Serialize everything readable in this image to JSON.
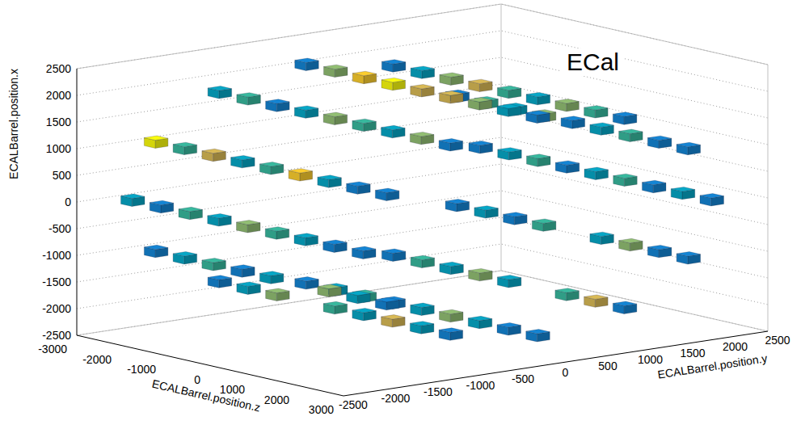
{
  "chart_data": {
    "type": "lego",
    "title": "ECal",
    "x_label": "ECALBarrel.position.x",
    "y_label": "ECALBarrel.position.y",
    "z_label": "ECALBarrel.position.z",
    "xlim": [
      -2500,
      2500
    ],
    "xticks": [
      -2500,
      -2000,
      -1500,
      -1000,
      -500,
      0,
      500,
      1000,
      1500,
      2000,
      2500
    ],
    "ylim": [
      -2500,
      2500
    ],
    "yticks": [
      -2500,
      -2000,
      -1500,
      -1000,
      -500,
      0,
      500,
      1000,
      1500,
      2000,
      2500
    ],
    "zlim": [
      -3000,
      3000
    ],
    "zticks": [
      -3000,
      -2000,
      -1000,
      0,
      1000,
      2000,
      3000
    ],
    "color_range": [
      0,
      10
    ],
    "grid": true,
    "points": [
      {
        "x": 0,
        "y": 2050,
        "z": -2600,
        "value": 3
      },
      {
        "x": 0,
        "y": 2050,
        "z": -1950,
        "value": 4
      },
      {
        "x": 0,
        "y": 2050,
        "z": -1300,
        "value": 5
      },
      {
        "x": 0,
        "y": 2050,
        "z": -650,
        "value": 2
      },
      {
        "x": 0,
        "y": 2050,
        "z": 0,
        "value": 4
      },
      {
        "x": 0,
        "y": 2050,
        "z": 650,
        "value": 5
      },
      {
        "x": 0,
        "y": 2050,
        "z": 1300,
        "value": 3
      },
      {
        "x": 0,
        "y": 2050,
        "z": 1950,
        "value": 4
      },
      {
        "x": 0,
        "y": 2050,
        "z": 2600,
        "value": 2
      },
      {
        "x": 1025,
        "y": 1775,
        "z": -2600,
        "value": 3
      },
      {
        "x": 1025,
        "y": 1775,
        "z": -1950,
        "value": 5
      },
      {
        "x": 1025,
        "y": 1775,
        "z": -1300,
        "value": 4
      },
      {
        "x": 1025,
        "y": 1775,
        "z": -650,
        "value": 6
      },
      {
        "x": 1025,
        "y": 1775,
        "z": 0,
        "value": 3
      },
      {
        "x": 1025,
        "y": 1775,
        "z": 650,
        "value": 4
      },
      {
        "x": 1025,
        "y": 1775,
        "z": 1300,
        "value": 5
      },
      {
        "x": 1025,
        "y": 1775,
        "z": 1950,
        "value": 3
      },
      {
        "x": 1025,
        "y": 1775,
        "z": 2600,
        "value": 2
      },
      {
        "x": -1025,
        "y": 1775,
        "z": -2600,
        "value": 2
      },
      {
        "x": -1025,
        "y": 1775,
        "z": -1950,
        "value": 4
      },
      {
        "x": -1025,
        "y": 1775,
        "z": -1300,
        "value": 3
      },
      {
        "x": -1025,
        "y": 1775,
        "z": -650,
        "value": 5
      },
      {
        "x": -1025,
        "y": 1775,
        "z": 650,
        "value": 4
      },
      {
        "x": -1025,
        "y": 1775,
        "z": 1300,
        "value": 6
      },
      {
        "x": -1025,
        "y": 1775,
        "z": 1950,
        "value": 3
      },
      {
        "x": -1025,
        "y": 1775,
        "z": 2600,
        "value": 2
      },
      {
        "x": 1775,
        "y": 1025,
        "z": -2600,
        "value": 2
      },
      {
        "x": 1775,
        "y": 1025,
        "z": -1950,
        "value": 4
      },
      {
        "x": 1775,
        "y": 1025,
        "z": -1300,
        "value": 6
      },
      {
        "x": 1775,
        "y": 1025,
        "z": -650,
        "value": 7
      },
      {
        "x": 1775,
        "y": 1025,
        "z": 0,
        "value": 5
      },
      {
        "x": 1775,
        "y": 1025,
        "z": 650,
        "value": 4
      },
      {
        "x": 1775,
        "y": 1025,
        "z": 1300,
        "value": 6
      },
      {
        "x": 1775,
        "y": 1025,
        "z": 1950,
        "value": 5
      },
      {
        "x": 1775,
        "y": 1025,
        "z": 2600,
        "value": 3
      },
      {
        "x": -1775,
        "y": 1025,
        "z": -2600,
        "value": 3
      },
      {
        "x": -1775,
        "y": 1025,
        "z": -1950,
        "value": 5
      },
      {
        "x": -1775,
        "y": 1025,
        "z": -1300,
        "value": 4
      },
      {
        "x": -1775,
        "y": 1025,
        "z": -650,
        "value": 6
      },
      {
        "x": -1775,
        "y": 1025,
        "z": 0,
        "value": 4
      },
      {
        "x": -1775,
        "y": 1025,
        "z": 1300,
        "value": 5
      },
      {
        "x": -1775,
        "y": 1025,
        "z": 1950,
        "value": 7
      },
      {
        "x": -1775,
        "y": 1025,
        "z": 2600,
        "value": 2
      },
      {
        "x": 2050,
        "y": 0,
        "z": -2600,
        "value": 3
      },
      {
        "x": 2050,
        "y": 0,
        "z": -1950,
        "value": 6
      },
      {
        "x": 2050,
        "y": 0,
        "z": -1300,
        "value": 9
      },
      {
        "x": 2050,
        "y": 0,
        "z": -650,
        "value": 10
      },
      {
        "x": 2050,
        "y": 0,
        "z": 0,
        "value": 8
      },
      {
        "x": 2050,
        "y": 0,
        "z": 650,
        "value": 7
      },
      {
        "x": 2050,
        "y": 0,
        "z": 1300,
        "value": 6
      },
      {
        "x": 2050,
        "y": 0,
        "z": 1950,
        "value": 4
      },
      {
        "x": 2050,
        "y": 0,
        "z": 2600,
        "value": 2
      },
      {
        "x": -2050,
        "y": 0,
        "z": -2600,
        "value": 2
      },
      {
        "x": -2050,
        "y": 0,
        "z": -1950,
        "value": 4
      },
      {
        "x": -2050,
        "y": 0,
        "z": -1300,
        "value": 5
      },
      {
        "x": -2050,
        "y": 0,
        "z": -650,
        "value": 3
      },
      {
        "x": -2050,
        "y": 0,
        "z": 0,
        "value": 4
      },
      {
        "x": -2050,
        "y": 0,
        "z": 650,
        "value": 6
      },
      {
        "x": -2050,
        "y": 0,
        "z": 1300,
        "value": 4
      },
      {
        "x": -2050,
        "y": 0,
        "z": 1950,
        "value": 3
      },
      {
        "x": -2050,
        "y": 0,
        "z": 2600,
        "value": 2
      },
      {
        "x": 1775,
        "y": -1025,
        "z": -2600,
        "value": 4
      },
      {
        "x": 1775,
        "y": -1025,
        "z": -1950,
        "value": 5
      },
      {
        "x": 1775,
        "y": -1025,
        "z": -1300,
        "value": 3
      },
      {
        "x": 1775,
        "y": -1025,
        "z": -650,
        "value": 4
      },
      {
        "x": 1775,
        "y": -1025,
        "z": 0,
        "value": 6
      },
      {
        "x": 1775,
        "y": -1025,
        "z": 650,
        "value": 5
      },
      {
        "x": 1775,
        "y": -1025,
        "z": 1300,
        "value": 4
      },
      {
        "x": 1775,
        "y": -1025,
        "z": 1950,
        "value": 6
      },
      {
        "x": 1775,
        "y": -1025,
        "z": 2600,
        "value": 3
      },
      {
        "x": -1775,
        "y": -1025,
        "z": -2600,
        "value": 3
      },
      {
        "x": -1775,
        "y": -1025,
        "z": -1950,
        "value": 4
      },
      {
        "x": -1775,
        "y": -1025,
        "z": -1300,
        "value": 6
      },
      {
        "x": -1775,
        "y": -1025,
        "z": 0,
        "value": 5
      },
      {
        "x": -1775,
        "y": -1025,
        "z": 650,
        "value": 4
      },
      {
        "x": -1775,
        "y": -1025,
        "z": 1300,
        "value": 7
      },
      {
        "x": -1775,
        "y": -1025,
        "z": 1950,
        "value": 4
      },
      {
        "x": -1775,
        "y": -1025,
        "z": 2600,
        "value": 2
      },
      {
        "x": 1025,
        "y": -1775,
        "z": -2600,
        "value": 10
      },
      {
        "x": 1025,
        "y": -1775,
        "z": -1950,
        "value": 5
      },
      {
        "x": 1025,
        "y": -1775,
        "z": -1300,
        "value": 7
      },
      {
        "x": 1025,
        "y": -1775,
        "z": -650,
        "value": 4
      },
      {
        "x": 1025,
        "y": -1775,
        "z": 0,
        "value": 5
      },
      {
        "x": 1025,
        "y": -1775,
        "z": 650,
        "value": 9
      },
      {
        "x": 1025,
        "y": -1775,
        "z": 1300,
        "value": 4
      },
      {
        "x": 1025,
        "y": -1775,
        "z": 1950,
        "value": 3
      },
      {
        "x": 1025,
        "y": -1775,
        "z": 2600,
        "value": 2
      },
      {
        "x": -1025,
        "y": -1775,
        "z": -2600,
        "value": 3
      },
      {
        "x": -1025,
        "y": -1775,
        "z": -1950,
        "value": 4
      },
      {
        "x": -1025,
        "y": -1775,
        "z": -1300,
        "value": 5
      },
      {
        "x": -1025,
        "y": -1775,
        "z": -650,
        "value": 3
      },
      {
        "x": -1025,
        "y": -1775,
        "z": 0,
        "value": 4
      },
      {
        "x": -1025,
        "y": -1775,
        "z": 1300,
        "value": 6
      },
      {
        "x": -1025,
        "y": -1775,
        "z": 1950,
        "value": 4
      },
      {
        "x": -1025,
        "y": -1775,
        "z": 2600,
        "value": 2
      },
      {
        "x": 0,
        "y": -2050,
        "z": -2600,
        "value": 4
      },
      {
        "x": 0,
        "y": -2050,
        "z": -1950,
        "value": 3
      },
      {
        "x": 0,
        "y": -2050,
        "z": -1300,
        "value": 5
      },
      {
        "x": 0,
        "y": -2050,
        "z": -650,
        "value": 4
      },
      {
        "x": 0,
        "y": -2050,
        "z": 0,
        "value": 6
      },
      {
        "x": 0,
        "y": -2050,
        "z": 650,
        "value": 5
      },
      {
        "x": 0,
        "y": -2050,
        "z": 1300,
        "value": 4
      },
      {
        "x": 0,
        "y": -2050,
        "z": 1950,
        "value": 3
      },
      {
        "x": 0,
        "y": -2050,
        "z": 2600,
        "value": 2
      }
    ]
  }
}
